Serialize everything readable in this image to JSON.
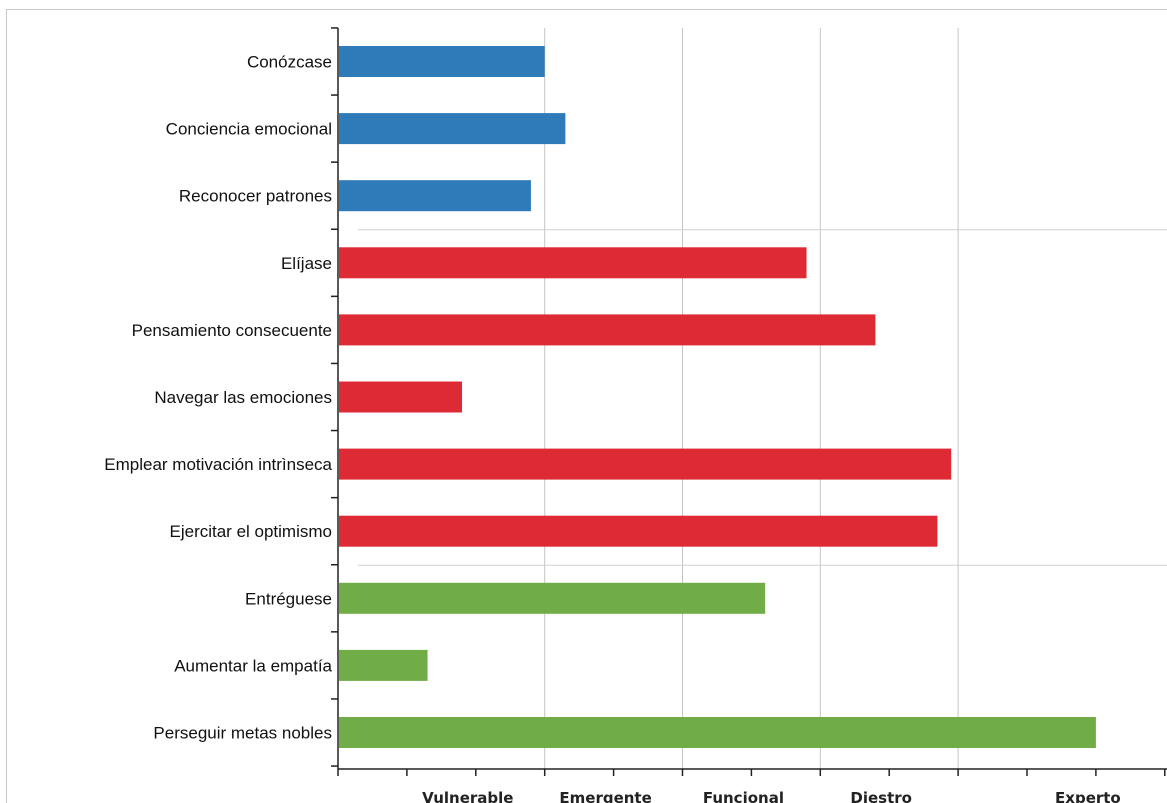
{
  "chart_data": {
    "type": "bar",
    "orientation": "horizontal",
    "categories": [
      "Conózcase",
      "Conciencia emocional",
      "Reconocer patrones",
      "Elíjase",
      "Pensamiento consecuente",
      "Navegar  las emociones",
      "Emplear  motivación  intrìnseca",
      "Ejercitar el optimismo",
      "Entréguese",
      "Aumentar la empatía",
      "Perseguir metas nobles"
    ],
    "values": [
      3.0,
      3.3,
      2.8,
      6.8,
      7.8,
      1.8,
      8.9,
      8.7,
      6.2,
      1.3,
      11.0
    ],
    "groups": [
      {
        "members": [
          0,
          1,
          2
        ],
        "color": "#2f7ab8"
      },
      {
        "members": [
          3,
          4,
          5,
          6,
          7
        ],
        "color": "#dd2a35"
      },
      {
        "members": [
          8,
          9,
          10
        ],
        "color": "#70ad47"
      }
    ],
    "xlim": [
      0,
      12
    ],
    "xticks": [
      1,
      2,
      3,
      4,
      5,
      6,
      7,
      8,
      9,
      10,
      11,
      12
    ],
    "gridlines_at": [
      3,
      5,
      7,
      9
    ],
    "xticklabels": [
      {
        "value": 2,
        "label": "Vulnerable"
      },
      {
        "value": 4,
        "label": "Emergente"
      },
      {
        "value": 6,
        "label": "Funcional"
      },
      {
        "value": 8,
        "label": "Diestro"
      },
      {
        "value": 11,
        "label": "Experto"
      }
    ],
    "grid": true,
    "title": "",
    "xlabel": "",
    "ylabel": ""
  }
}
